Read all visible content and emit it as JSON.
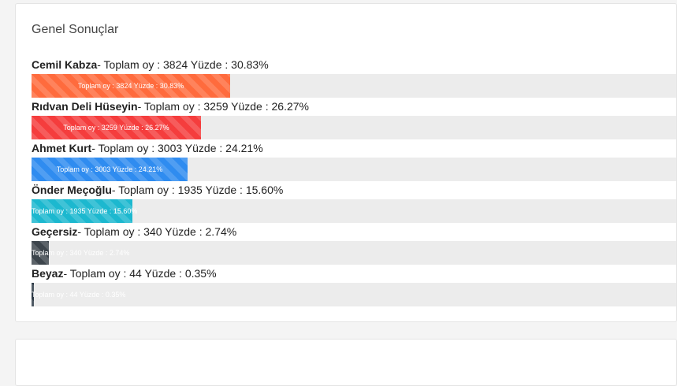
{
  "panel": {
    "title": "Genel Sonuçlar"
  },
  "results": [
    {
      "name": "Cemil Kabza",
      "detail": "- Toplam oy : 3824 Yüzde : 30.83%",
      "bar_text": "Toplam oy : 3824 Yüzde : 30.83%",
      "votes": 3824,
      "percent": 30.83,
      "color": "#ff6b3d"
    },
    {
      "name": "Rıdvan Deli Hüseyin",
      "detail": "- Toplam oy : 3259 Yüzde : 26.27%",
      "bar_text": "Toplam oy : 3259 Yüzde : 26.27%",
      "votes": 3259,
      "percent": 26.27,
      "color": "#f53d3d"
    },
    {
      "name": "Ahmet Kurt",
      "detail": "- Toplam oy : 3003 Yüzde : 24.21%",
      "bar_text": "Toplam oy : 3003 Yüzde : 24.21%",
      "votes": 3003,
      "percent": 24.21,
      "color": "#2f8cf0"
    },
    {
      "name": "Önder Meçoğlu",
      "detail": "- Toplam oy : 1935 Yüzde : 15.60%",
      "bar_text": "Toplam oy : 1935 Yüzde : 15.60%",
      "votes": 1935,
      "percent": 15.6,
      "color": "#1cb8cf"
    },
    {
      "name": "Geçersiz",
      "detail": "- Toplam oy : 340 Yüzde : 2.74%",
      "bar_text": "Toplam oy : 340 Yüzde : 2.74%",
      "votes": 340,
      "percent": 2.74,
      "color": "#3d454c"
    },
    {
      "name": "Beyaz",
      "detail": "- Toplam oy : 44 Yüzde : 0.35%",
      "bar_text": "Toplam oy : 44 Yüzde : 0.35%",
      "votes": 44,
      "percent": 0.35,
      "color": "#2d3a46"
    }
  ]
}
